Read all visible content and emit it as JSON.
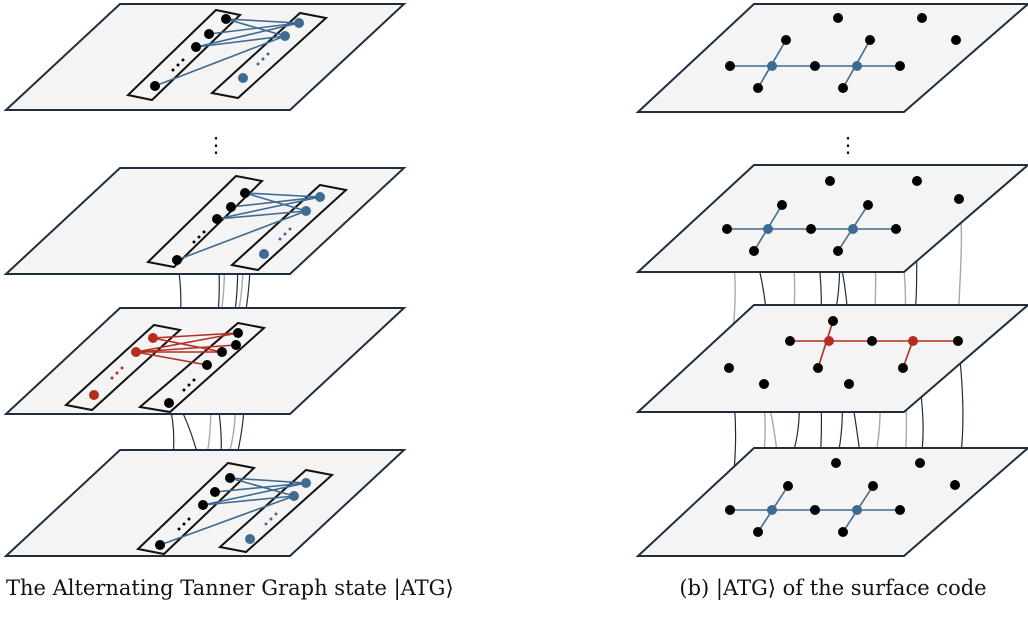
{
  "panels": [
    {
      "id": "a",
      "caption": "(a) The Alternating Tanner Graph state |ATG⟩"
    },
    {
      "id": "b",
      "caption": "(b) |ATG⟩ of the surface code"
    }
  ],
  "ellipsis": "⋮",
  "colors": {
    "plane_fill": "#f4f4f4",
    "outline": "#1f2f3f",
    "qubit": "#000000",
    "check_blue": "#3f6a92",
    "check_red": "#b62c20",
    "vertical_dark": "#1e2b3a",
    "vertical_gray": "#a8a8a8"
  }
}
